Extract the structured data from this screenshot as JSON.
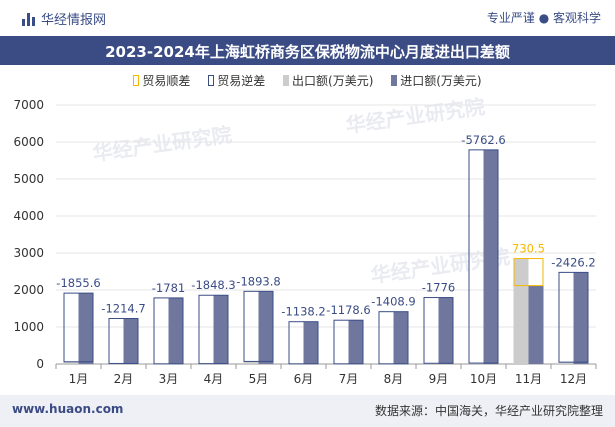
{
  "header": {
    "brand": "华经情报网",
    "tagline": "专业严谨 ● 客观科学"
  },
  "title": "2023-2024年上海虹桥商务区保税物流中心月度进出口差额",
  "footer": {
    "website": "www.huaon.com",
    "source": "数据来源：中国海关，华经产业研究院整理"
  },
  "watermark": "华经产业研究院",
  "colors": {
    "surplus": "#f5b800",
    "deficit": "#3a4d86",
    "export": "#cccccc",
    "import": "#6f779f",
    "label": "#3a4d86",
    "header_bg": "#3b4c85"
  },
  "chart_data": {
    "type": "bar",
    "title": "2023-2024年上海虹桥商务区保税物流中心月度进出口差额",
    "categories": [
      "1月",
      "2月",
      "3月",
      "4月",
      "5月",
      "6月",
      "7月",
      "8月",
      "9月",
      "10月",
      "11月",
      "12月"
    ],
    "series": [
      {
        "name": "贸易顺差",
        "values": [
          null,
          null,
          null,
          null,
          null,
          null,
          null,
          null,
          null,
          null,
          730.5,
          null
        ]
      },
      {
        "name": "贸易逆差",
        "values": [
          -1855.6,
          -1214.7,
          -1781,
          -1848.3,
          -1893.8,
          -1138.2,
          -1178.6,
          -1408.9,
          -1776,
          -5762.6,
          null,
          -2426.2
        ]
      },
      {
        "name": "出口额(万美元)",
        "values": [
          60,
          15,
          5,
          10,
          70,
          5,
          5,
          5,
          20,
          25,
          2850,
          50
        ]
      },
      {
        "name": "进口额(万美元)",
        "values": [
          1915.6,
          1229.7,
          1786,
          1858.3,
          1963.8,
          1143.2,
          1183.6,
          1413.9,
          1796,
          5787.6,
          2119.5,
          2476.2
        ]
      }
    ],
    "data_labels": [
      "-1855.6",
      "-1214.7",
      "-1781",
      "-1848.3",
      "-1893.8",
      "-1138.2",
      "-1178.6",
      "-1408.9",
      "-1776",
      "-5762.6",
      "730.5",
      "-2426.2"
    ],
    "yticks": [
      "0",
      "1000",
      "2000",
      "3000",
      "4000",
      "5000",
      "6000",
      "7000"
    ],
    "ylim": [
      0,
      7000
    ],
    "xlabel": "",
    "ylabel": "",
    "legend_position": "top-center"
  }
}
